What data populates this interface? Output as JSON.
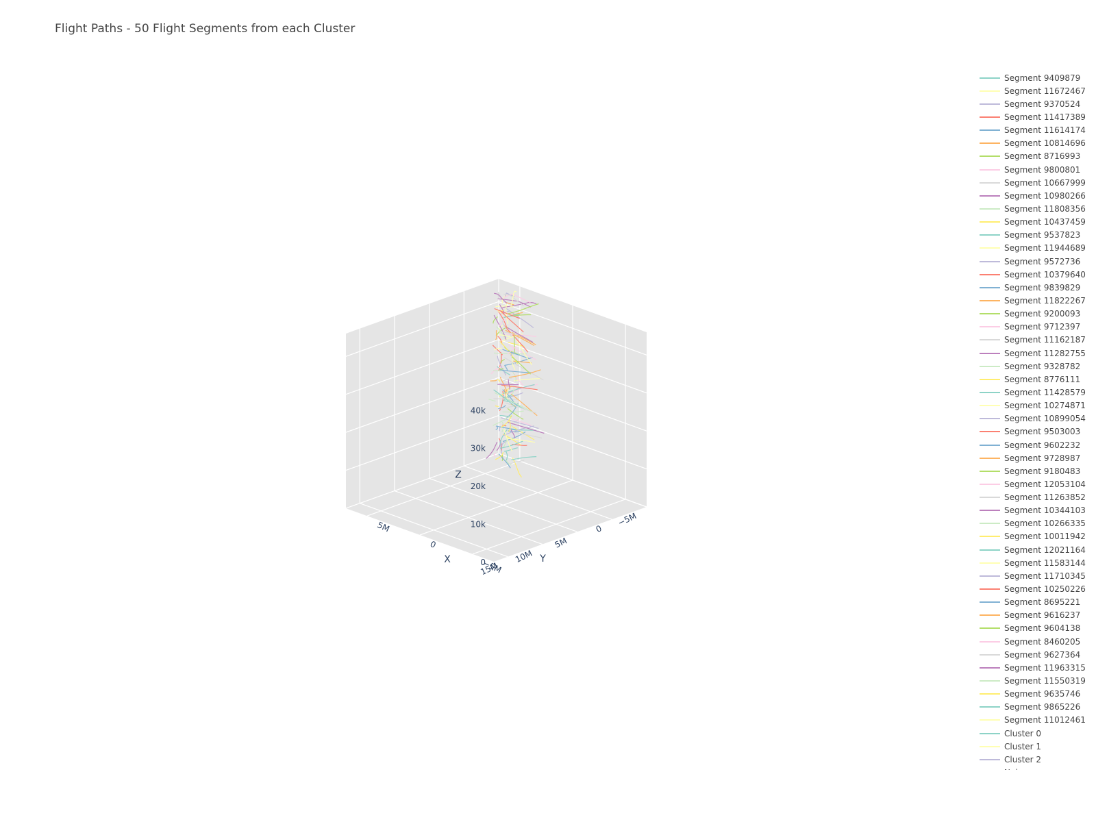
{
  "chart_data": {
    "type": "line3d",
    "title": "Flight Paths - 50 Flight Segments from each Cluster",
    "axes": {
      "x": {
        "title": "X",
        "ticks": [
          -5000000,
          0,
          5000000
        ],
        "tick_labels": [
          "−5M",
          "0",
          "5M"
        ],
        "range": [
          -7000000,
          7000000
        ]
      },
      "y": {
        "title": "Y",
        "ticks": [
          -5000000,
          0,
          5000000,
          10000000,
          15000000
        ],
        "tick_labels": [
          "−5M",
          "0",
          "5M",
          "10M",
          "15M"
        ],
        "range": [
          -5000000,
          17000000
        ]
      },
      "z": {
        "title": "Z",
        "ticks": [
          0,
          10000,
          20000,
          30000,
          40000
        ],
        "tick_labels": [
          "0",
          "10k",
          "20k",
          "30k",
          "40k"
        ],
        "range": [
          0,
          46000
        ]
      }
    },
    "background": "#e5e5e5",
    "grid": true,
    "legend_position": "right",
    "palette": [
      "#8dd3c7",
      "#ffffb3",
      "#bebada",
      "#fb8072",
      "#80b1d3",
      "#fdb462",
      "#b3de69",
      "#fccde5",
      "#d9d9d9",
      "#bc80bd",
      "#ccebc5",
      "#ffed6f"
    ],
    "series": [
      {
        "name": "Segment 9409879",
        "color": "#8dd3c7"
      },
      {
        "name": "Segment 11672467",
        "color": "#ffffb3"
      },
      {
        "name": "Segment 9370524",
        "color": "#bebada"
      },
      {
        "name": "Segment 11417389",
        "color": "#fb8072"
      },
      {
        "name": "Segment 11614174",
        "color": "#80b1d3"
      },
      {
        "name": "Segment 10814696",
        "color": "#fdb462"
      },
      {
        "name": "Segment 8716993",
        "color": "#b3de69"
      },
      {
        "name": "Segment 9800801",
        "color": "#fccde5"
      },
      {
        "name": "Segment 10667999",
        "color": "#d9d9d9"
      },
      {
        "name": "Segment 10980266",
        "color": "#bc80bd"
      },
      {
        "name": "Segment 11808356",
        "color": "#ccebc5"
      },
      {
        "name": "Segment 10437459",
        "color": "#ffed6f"
      },
      {
        "name": "Segment 9537823",
        "color": "#8dd3c7"
      },
      {
        "name": "Segment 11944689",
        "color": "#ffffb3"
      },
      {
        "name": "Segment 9572736",
        "color": "#bebada"
      },
      {
        "name": "Segment 10379640",
        "color": "#fb8072"
      },
      {
        "name": "Segment 9839829",
        "color": "#80b1d3"
      },
      {
        "name": "Segment 11822267",
        "color": "#fdb462"
      },
      {
        "name": "Segment 9200093",
        "color": "#b3de69"
      },
      {
        "name": "Segment 9712397",
        "color": "#fccde5"
      },
      {
        "name": "Segment 11162187",
        "color": "#d9d9d9"
      },
      {
        "name": "Segment 11282755",
        "color": "#bc80bd"
      },
      {
        "name": "Segment 9328782",
        "color": "#ccebc5"
      },
      {
        "name": "Segment 8776111",
        "color": "#ffed6f"
      },
      {
        "name": "Segment 11428579",
        "color": "#8dd3c7"
      },
      {
        "name": "Segment 10274871",
        "color": "#ffffb3"
      },
      {
        "name": "Segment 10899054",
        "color": "#bebada"
      },
      {
        "name": "Segment 9503003",
        "color": "#fb8072"
      },
      {
        "name": "Segment 9602232",
        "color": "#80b1d3"
      },
      {
        "name": "Segment 9728987",
        "color": "#fdb462"
      },
      {
        "name": "Segment 9180483",
        "color": "#b3de69"
      },
      {
        "name": "Segment 12053104",
        "color": "#fccde5"
      },
      {
        "name": "Segment 11263852",
        "color": "#d9d9d9"
      },
      {
        "name": "Segment 10344103",
        "color": "#bc80bd"
      },
      {
        "name": "Segment 10266335",
        "color": "#ccebc5"
      },
      {
        "name": "Segment 10011942",
        "color": "#ffed6f"
      },
      {
        "name": "Segment 12021164",
        "color": "#8dd3c7"
      },
      {
        "name": "Segment 11583144",
        "color": "#ffffb3"
      },
      {
        "name": "Segment 11710345",
        "color": "#bebada"
      },
      {
        "name": "Segment 10250226",
        "color": "#fb8072"
      },
      {
        "name": "Segment 8695221",
        "color": "#80b1d3"
      },
      {
        "name": "Segment 9616237",
        "color": "#fdb462"
      },
      {
        "name": "Segment 9604138",
        "color": "#b3de69"
      },
      {
        "name": "Segment 8460205",
        "color": "#fccde5"
      },
      {
        "name": "Segment 9627364",
        "color": "#d9d9d9"
      },
      {
        "name": "Segment 11963315",
        "color": "#bc80bd"
      },
      {
        "name": "Segment 11550319",
        "color": "#ccebc5"
      },
      {
        "name": "Segment 9635746",
        "color": "#ffed6f"
      },
      {
        "name": "Segment 9865226",
        "color": "#8dd3c7"
      },
      {
        "name": "Segment 11012461",
        "color": "#ffffb3"
      },
      {
        "name": "Cluster 0",
        "color": "#8dd3c7"
      },
      {
        "name": "Cluster 1",
        "color": "#ffffb3"
      },
      {
        "name": "Cluster 2",
        "color": "#bebada"
      },
      {
        "name": "Noise",
        "color": "#fb8072"
      }
    ]
  }
}
